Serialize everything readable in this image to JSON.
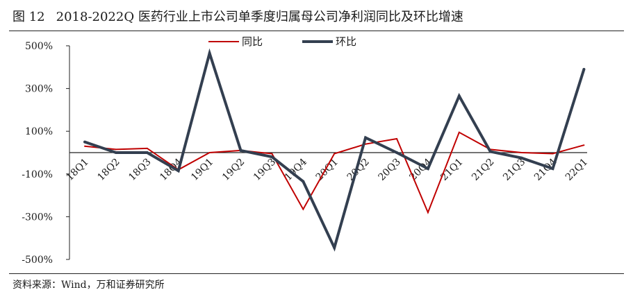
{
  "figure": {
    "number": "图 12",
    "title": "2018-2022Q 医药行业上市公司单季度归属母公司净利润同比及环比增速",
    "source": "资料来源：Wind，万和证券研究所"
  },
  "chart_data": {
    "type": "line",
    "categories": [
      "18Q1",
      "18Q2",
      "18Q3",
      "18Q4",
      "19Q1",
      "19Q2",
      "19Q3",
      "19Q4",
      "20Q1",
      "20Q2",
      "20Q3",
      "20Q4",
      "21Q1",
      "21Q2",
      "21Q3",
      "21Q4",
      "22Q1"
    ],
    "y_ticks": [
      "500%",
      "300%",
      "100%",
      "-100%",
      "-300%",
      "-500%"
    ],
    "ylim": [
      -500,
      500
    ],
    "y_unit": "%",
    "legend_position": "top-center",
    "grid": false,
    "series": [
      {
        "name": "同比",
        "color": "#c00000",
        "values": [
          30,
          15,
          20,
          -80,
          0,
          10,
          -5,
          -265,
          -5,
          40,
          65,
          -280,
          95,
          15,
          0,
          -5,
          35
        ]
      },
      {
        "name": "环比",
        "color": "#333f50",
        "values": [
          50,
          0,
          0,
          -85,
          465,
          10,
          -20,
          -135,
          -445,
          70,
          0,
          -75,
          265,
          5,
          -25,
          -75,
          390
        ]
      }
    ]
  }
}
